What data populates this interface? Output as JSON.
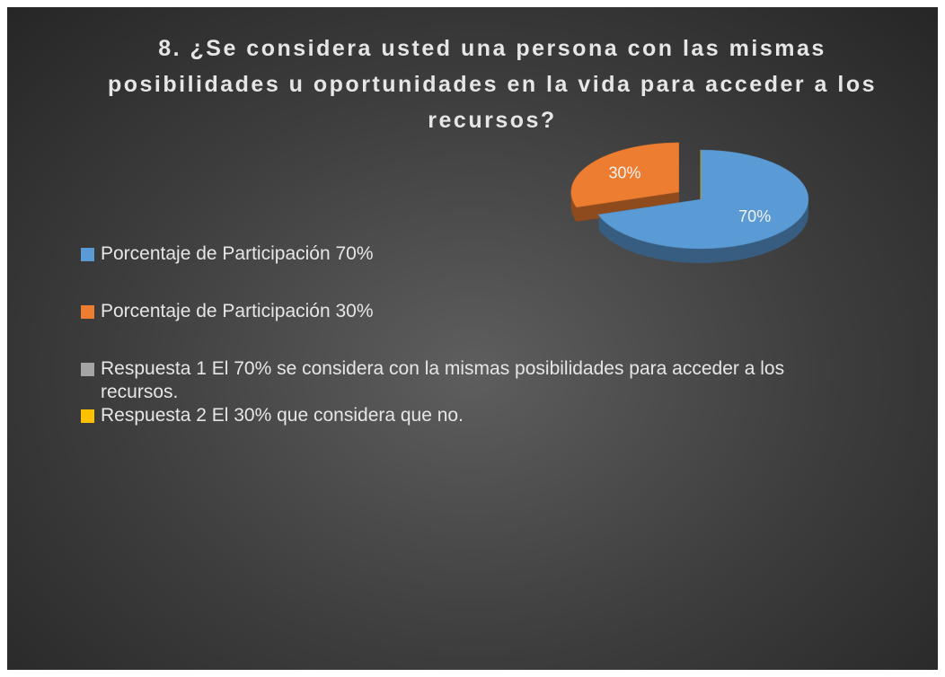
{
  "chart_data": {
    "type": "pie",
    "title": "8.   ¿Se considera usted una persona con las mismas posibilidades u oportunidades en la vida para acceder a los recursos?",
    "categories": [
      "Porcentaje de Participación 70%",
      "Porcentaje de Participación 30%",
      "Respuesta 1 El 70% se considera con la mismas posibilidades para acceder a los recursos.",
      "Respuesta 2 El 30% que considera que no."
    ],
    "values": [
      70,
      30,
      0,
      0
    ],
    "value_labels": [
      "70%",
      "30%",
      null,
      null
    ],
    "colors": [
      "#5b9bd5",
      "#ed7d31",
      "#a5a5a5",
      "#ffc000"
    ],
    "explode": [
      0,
      0.25,
      0,
      0
    ],
    "legend": "left"
  }
}
